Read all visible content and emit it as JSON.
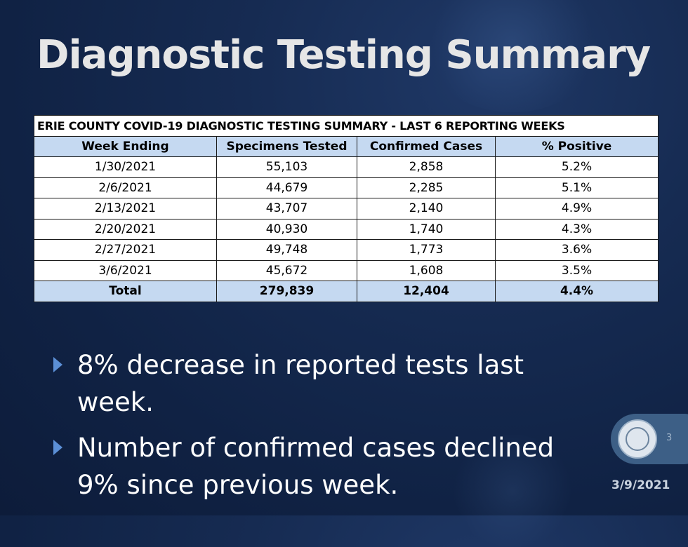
{
  "slide": {
    "title": "Diagnostic Testing Summary",
    "page_number": "3",
    "date": "3/9/2021"
  },
  "table": {
    "caption": "ERIE COUNTY COVID-19 DIAGNOSTIC TESTING SUMMARY - LAST 6 REPORTING WEEKS",
    "headers": [
      "Week Ending",
      "Specimens Tested",
      "Confirmed Cases",
      "% Positive"
    ],
    "rows": [
      [
        "1/30/2021",
        "55,103",
        "2,858",
        "5.2%"
      ],
      [
        "2/6/2021",
        "44,679",
        "2,285",
        "5.1%"
      ],
      [
        "2/13/2021",
        "43,707",
        "2,140",
        "4.9%"
      ],
      [
        "2/20/2021",
        "40,930",
        "1,740",
        "4.3%"
      ],
      [
        "2/27/2021",
        "49,748",
        "1,773",
        "3.6%"
      ],
      [
        "3/6/2021",
        "45,672",
        "1,608",
        "3.5%"
      ]
    ],
    "total": [
      "Total",
      "279,839",
      "12,404",
      "4.4%"
    ]
  },
  "bullets": [
    "8% decrease in reported tests last week.",
    "Number of confirmed cases declined 9% since previous week."
  ],
  "colors": {
    "background": "#14284e",
    "header_fill": "#c5d9f1",
    "bullet_arrow": "#5b8fd6"
  }
}
